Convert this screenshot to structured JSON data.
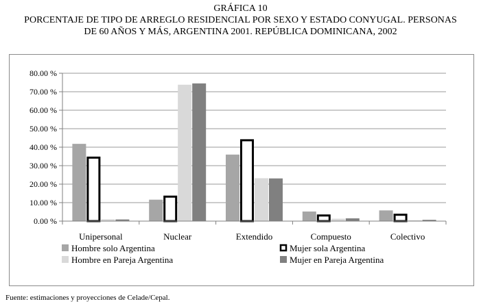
{
  "header": {
    "label": "GRÁFICA 10",
    "title_line1": "PORCENTAJE DE TIPO DE ARREGLO RESIDENCIAL POR SEXO Y ESTADO CONYUGAL. PERSONAS",
    "title_line2": "DE 60 AÑOS Y MÁS, ARGENTINA 2001.  REPÚBLICA DOMINICANA, 2002"
  },
  "source": "Fuente: estimaciones y proyecciones de Celade/Cepal.",
  "chart_data": {
    "type": "bar",
    "categories": [
      "Unipersonal",
      "Nuclear",
      "Extendido",
      "Compuesto",
      "Colectivo"
    ],
    "ylim": [
      0,
      80
    ],
    "ytick_step": 10,
    "ytick_labels": [
      "0.00 %",
      "10.00 %",
      "20.00 %",
      "30.00 %",
      "40.00 %",
      "50.00 %",
      "60.00 %",
      "70.00 %",
      "80.00 %"
    ],
    "grid": true,
    "legend_position": "bottom",
    "series": [
      {
        "name": "Hombre solo Argentina",
        "values": [
          41.8,
          11.6,
          36.0,
          5.2,
          5.8
        ],
        "color": "#a6a6a6",
        "stroke": "#a6a6a6"
      },
      {
        "name": "Mujer sola Argentina",
        "values": [
          34.9,
          13.8,
          44.3,
          3.6,
          4.0
        ],
        "color": "#ffffff",
        "stroke": "#000000"
      },
      {
        "name": "Hombre en Pareja Argentina",
        "values": [
          1.0,
          73.8,
          23.2,
          1.3,
          0.5
        ],
        "color": "#d9d9d9",
        "stroke": "#d9d9d9"
      },
      {
        "name": "Mujer en Pareja Argentina",
        "values": [
          0.9,
          74.5,
          23.1,
          1.5,
          0.7
        ],
        "color": "#808080",
        "stroke": "#808080"
      }
    ]
  }
}
